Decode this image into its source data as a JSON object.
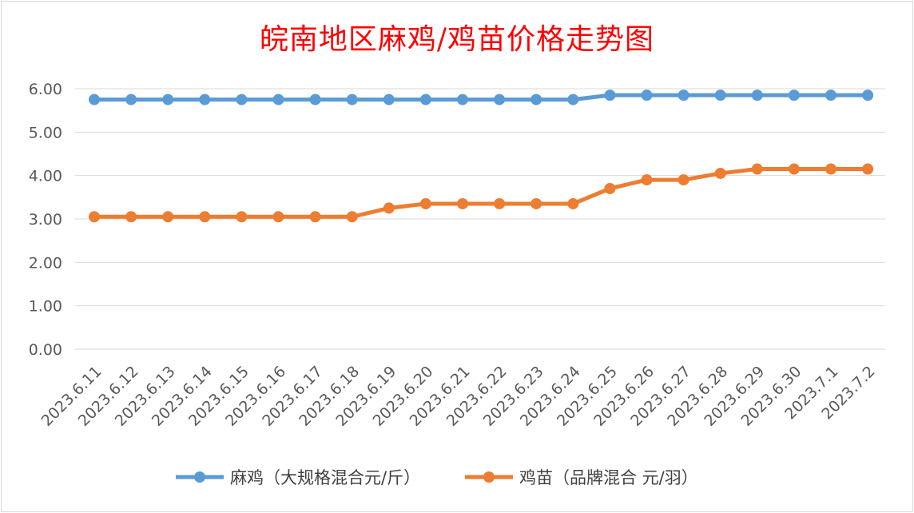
{
  "chart_data": {
    "type": "line",
    "title": "皖南地区麻鸡/鸡苗价格走势图",
    "xlabel": "",
    "ylabel": "",
    "categories": [
      "2023.6.11",
      "2023.6.12",
      "2023.6.13",
      "2023.6.14",
      "2023.6.15",
      "2023.6.16",
      "2023.6.17",
      "2023.6.18",
      "2023.6.19",
      "2023.6.20",
      "2023.6.21",
      "2023.6.22",
      "2023.6.23",
      "2023.6.24",
      "2023.6.25",
      "2023.6.26",
      "2023.6.27",
      "2023.6.28",
      "2023.6.29",
      "2023.6.30",
      "2023.7.1",
      "2023.7.2"
    ],
    "yticks": [
      "0.00",
      "1.00",
      "2.00",
      "3.00",
      "4.00",
      "5.00",
      "6.00"
    ],
    "ylim": [
      0,
      6
    ],
    "grid": true,
    "legend_position": "bottom",
    "series": [
      {
        "name": "麻鸡（大规格混合元/斤）",
        "color": "#5b9bd5",
        "values": [
          5.75,
          5.75,
          5.75,
          5.75,
          5.75,
          5.75,
          5.75,
          5.75,
          5.75,
          5.75,
          5.75,
          5.75,
          5.75,
          5.75,
          5.85,
          5.85,
          5.85,
          5.85,
          5.85,
          5.85,
          5.85,
          5.85
        ]
      },
      {
        "name": "鸡苗（品牌混合 元/羽）",
        "color": "#ed7d31",
        "values": [
          3.05,
          3.05,
          3.05,
          3.05,
          3.05,
          3.05,
          3.05,
          3.05,
          3.25,
          3.35,
          3.35,
          3.35,
          3.35,
          3.35,
          3.7,
          3.9,
          3.9,
          4.05,
          4.15,
          4.15,
          4.15,
          4.15
        ]
      }
    ]
  }
}
